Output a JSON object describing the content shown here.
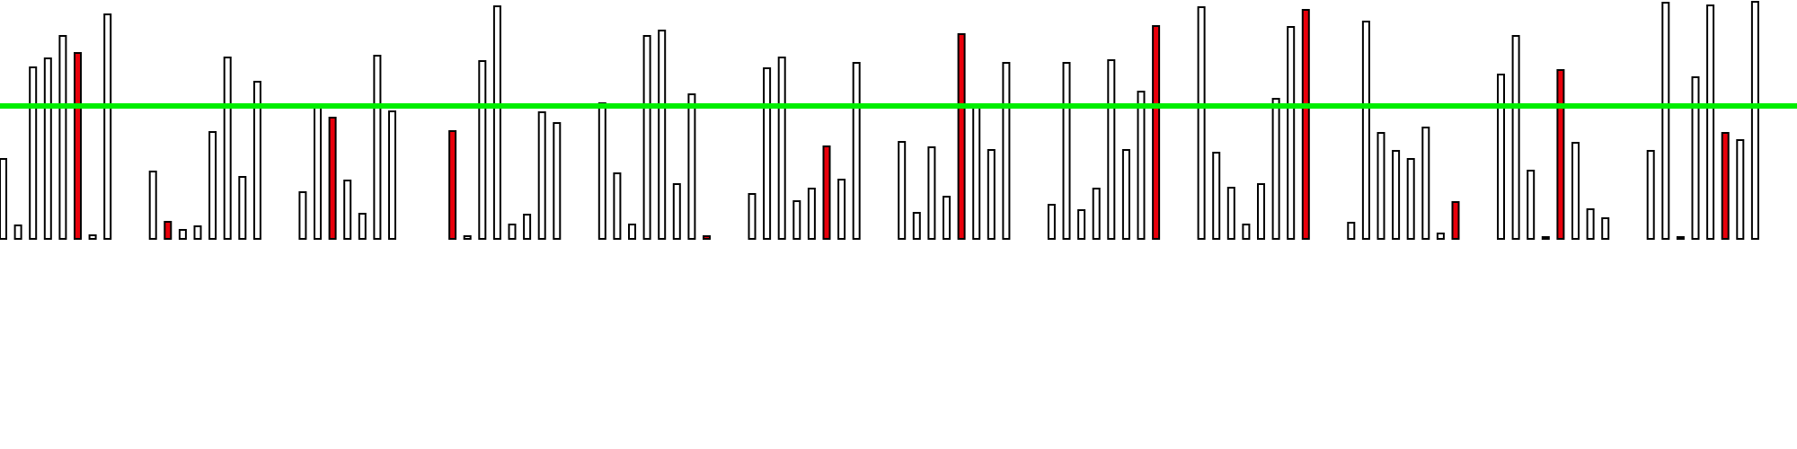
{
  "chart_data": {
    "type": "bar",
    "title": "",
    "xlabel": "",
    "ylabel": "",
    "ylim": [
      0,
      270
    ],
    "grid": false,
    "legend": "none",
    "colors": {
      "normal": "#ffffff",
      "highlight": "#e8000b",
      "outline": "#000000",
      "threshold_line": "#00ee00"
    },
    "threshold": 148,
    "groups": [
      {
        "values": [
          89,
          15,
          191,
          201,
          226,
          207,
          4,
          250
        ],
        "highlight": [
          5
        ]
      },
      {
        "values": [
          75,
          19,
          10,
          14,
          119,
          202,
          69,
          175
        ],
        "highlight": [
          1
        ]
      },
      {
        "values": [
          52,
          147,
          135,
          65,
          28,
          204,
          142
        ],
        "highlight": [
          2
        ]
      },
      {
        "values": [
          120,
          3,
          198,
          259,
          16,
          27,
          141,
          129
        ],
        "highlight": [
          0
        ]
      },
      {
        "values": [
          151,
          73,
          16,
          226,
          232,
          61,
          161,
          3
        ],
        "highlight": [
          7
        ]
      },
      {
        "values": [
          50,
          190,
          202,
          42,
          56,
          103,
          66,
          196
        ],
        "highlight": [
          5
        ]
      },
      {
        "values": [
          108,
          29,
          102,
          47,
          228,
          148,
          99,
          196
        ],
        "highlight": [
          4
        ]
      },
      {
        "values": [
          38,
          196,
          32,
          56,
          199,
          99,
          164,
          237
        ],
        "highlight": [
          7
        ]
      },
      {
        "values": [
          258,
          96,
          57,
          16,
          61,
          156,
          236,
          255
        ],
        "highlight": [
          7
        ]
      },
      {
        "values": [
          18,
          242,
          118,
          98,
          89,
          124,
          6,
          41
        ],
        "highlight": [
          7
        ]
      },
      {
        "values": [
          183,
          226,
          76,
          2,
          188,
          107,
          33,
          23
        ],
        "highlight": [
          4
        ]
      },
      {
        "values": [
          98,
          263,
          2,
          180,
          260,
          118,
          110,
          264
        ],
        "highlight": [
          5
        ]
      }
    ]
  }
}
